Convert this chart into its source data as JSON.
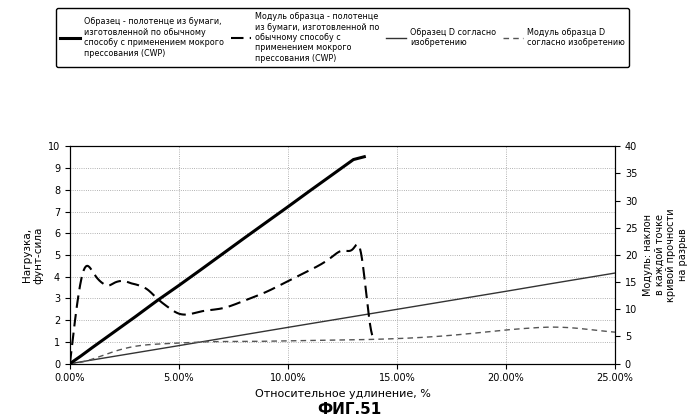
{
  "title": "ФИГ.51",
  "xlabel": "Относительное удлинение, %",
  "ylabel_left": "Нагрузка,\nфунт-сила",
  "ylabel_right": "Модуль: наклон\nв каждой точке\nкривой прочности\nна разрыв",
  "xlim": [
    0.0,
    0.25
  ],
  "ylim_left": [
    0,
    10
  ],
  "ylim_right": [
    0,
    40
  ],
  "yticks_left": [
    0,
    1,
    2,
    3,
    4,
    5,
    6,
    7,
    8,
    9,
    10
  ],
  "yticks_right": [
    0,
    5,
    10,
    15,
    20,
    25,
    30,
    35,
    40
  ],
  "xticks": [
    0.0,
    0.05,
    0.1,
    0.15,
    0.2,
    0.25
  ],
  "xtick_labels": [
    "0.00%",
    "5.00%",
    "10.00%",
    "15.00%",
    "20.00%",
    "25.00%"
  ],
  "legend_entries": [
    "Образец - полотенце из бумаги,\nизготовленной по обычному\nспособу с применением мокрого\nпрессования (CWP)",
    "Модуль образца - полотенце\nиз бумаги, изготовленной по\nобычному способу с\nприменением мокрого\nпрессования (CWP)",
    "Образец D согласно\nизобретению",
    "Модуль образца D\nсогласно изобретению"
  ],
  "background_color": "#ffffff",
  "grid_color": "#999999",
  "cwp_load_x": [
    0.0,
    0.005,
    0.01,
    0.02,
    0.03,
    0.04,
    0.05,
    0.06,
    0.07,
    0.08,
    0.09,
    0.1,
    0.11,
    0.12,
    0.13,
    0.135
  ],
  "cwp_load_y": [
    0.0,
    0.35,
    0.72,
    1.44,
    2.16,
    2.9,
    3.6,
    4.32,
    5.05,
    5.78,
    6.5,
    7.22,
    7.95,
    8.67,
    9.39,
    9.52
  ],
  "cwp_mod_x": [
    0.0,
    0.003,
    0.006,
    0.008,
    0.01,
    0.012,
    0.015,
    0.018,
    0.02,
    0.023,
    0.025,
    0.028,
    0.03,
    0.033,
    0.035,
    0.04,
    0.045,
    0.05,
    0.06,
    0.07,
    0.08,
    0.09,
    0.1,
    0.11,
    0.12,
    0.125,
    0.13,
    0.133,
    0.135,
    0.14
  ],
  "cwp_mod_y": [
    0.0,
    2.5,
    4.2,
    4.5,
    4.3,
    4.0,
    3.7,
    3.6,
    3.7,
    3.8,
    3.8,
    3.7,
    3.65,
    3.55,
    3.45,
    3.0,
    2.6,
    2.3,
    2.4,
    2.55,
    2.9,
    3.3,
    3.8,
    4.3,
    4.9,
    5.2,
    5.3,
    5.3,
    4.0,
    1.3
  ],
  "sampleD_load_x": [
    0.0,
    0.05,
    0.1,
    0.15,
    0.2,
    0.22,
    0.25
  ],
  "sampleD_load_y": [
    0.0,
    0.83,
    1.67,
    2.5,
    3.33,
    3.67,
    4.17
  ],
  "sampleD_mod_x": [
    0.0,
    0.01,
    0.02,
    0.03,
    0.04,
    0.05,
    0.06,
    0.08,
    0.1,
    0.12,
    0.14,
    0.16,
    0.18,
    0.2,
    0.21,
    0.22,
    0.23,
    0.24,
    0.25
  ],
  "sampleD_mod_y": [
    0.0,
    0.2,
    0.55,
    0.8,
    0.9,
    0.95,
    1.0,
    1.02,
    1.05,
    1.08,
    1.12,
    1.2,
    1.35,
    1.55,
    1.63,
    1.68,
    1.65,
    1.55,
    1.45
  ]
}
